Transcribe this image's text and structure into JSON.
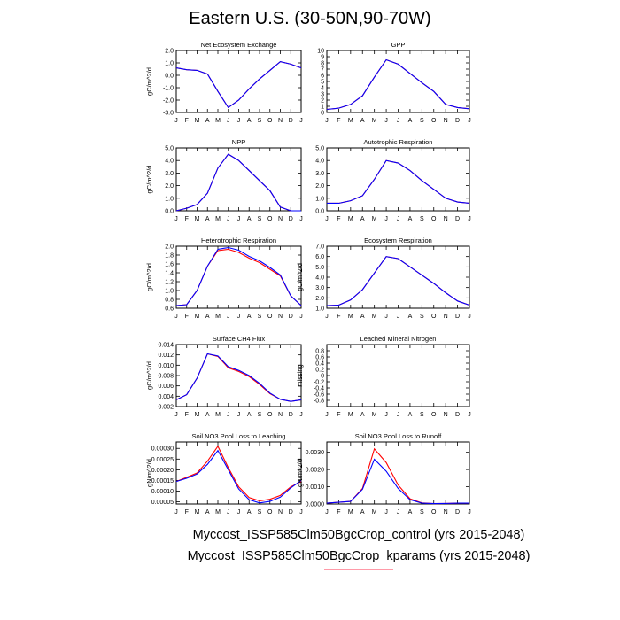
{
  "page": {
    "title": "Eastern U.S. (30-50N,90-70W)",
    "legend": [
      {
        "label": "Myccost_ISSP585Clm50BgcCrop_control (yrs 2015-2048)",
        "color": "#ff0000"
      },
      {
        "label": "Myccost_ISSP585Clm50BgcCrop_kparams (yrs 2015-2048)",
        "color": "#0000ff"
      }
    ]
  },
  "chart_data": [
    {
      "type": "line",
      "title": "Net Ecosystem Exchange",
      "ylabel": "gC/m^2/d",
      "ylim": [
        -3.0,
        2.0
      ],
      "yticks": [
        "2.0",
        "1.0",
        "0.0",
        "-1.0",
        "-2.0",
        "-3.0"
      ],
      "ytick_values": [
        2,
        1,
        0,
        -1,
        -2,
        -3
      ],
      "x": [
        "J",
        "F",
        "M",
        "A",
        "M",
        "J",
        "J",
        "A",
        "S",
        "O",
        "N",
        "D",
        "J"
      ],
      "series": [
        {
          "color": "#ff0000",
          "values": [
            0.6,
            0.45,
            0.4,
            0.1,
            -1.3,
            -2.6,
            -2.0,
            -1.1,
            -0.3,
            0.4,
            1.1,
            0.9,
            0.6
          ]
        },
        {
          "color": "#0000ff",
          "values": [
            0.6,
            0.45,
            0.4,
            0.1,
            -1.3,
            -2.6,
            -2.0,
            -1.1,
            -0.3,
            0.4,
            1.1,
            0.9,
            0.6
          ]
        }
      ]
    },
    {
      "type": "line",
      "title": "GPP",
      "ylabel": "",
      "ylim": [
        0,
        10
      ],
      "yticks": [
        "10",
        "9",
        "8",
        "7",
        "6",
        "5",
        "4",
        "3",
        "2",
        "1",
        "0"
      ],
      "ytick_values": [
        10,
        9,
        8,
        7,
        6,
        5,
        4,
        3,
        2,
        1,
        0
      ],
      "x": [
        "J",
        "F",
        "M",
        "A",
        "M",
        "J",
        "J",
        "A",
        "S",
        "O",
        "N",
        "D",
        "J"
      ],
      "series": [
        {
          "color": "#ff0000",
          "values": [
            0.5,
            0.7,
            1.3,
            2.7,
            5.7,
            8.5,
            7.8,
            6.3,
            4.8,
            3.4,
            1.3,
            0.8,
            0.6
          ]
        },
        {
          "color": "#0000ff",
          "values": [
            0.5,
            0.7,
            1.3,
            2.7,
            5.7,
            8.5,
            7.8,
            6.3,
            4.8,
            3.4,
            1.3,
            0.8,
            0.6
          ]
        }
      ]
    },
    {
      "type": "line",
      "title": "NPP",
      "ylabel": "gC/m^2/d",
      "ylim": [
        0,
        5
      ],
      "yticks": [
        "5.0",
        "4.0",
        "3.0",
        "2.0",
        "1.0",
        "0.0"
      ],
      "ytick_values": [
        5,
        4,
        3,
        2,
        1,
        0
      ],
      "x": [
        "J",
        "F",
        "M",
        "A",
        "M",
        "J",
        "J",
        "A",
        "S",
        "O",
        "N",
        "D",
        "J"
      ],
      "series": [
        {
          "color": "#ff0000",
          "values": [
            0.0,
            0.2,
            0.5,
            1.4,
            3.4,
            4.5,
            4.0,
            3.2,
            2.4,
            1.6,
            0.3,
            0.0,
            0.0
          ]
        },
        {
          "color": "#0000ff",
          "values": [
            0.0,
            0.2,
            0.5,
            1.4,
            3.4,
            4.5,
            4.0,
            3.2,
            2.4,
            1.6,
            0.3,
            0.0,
            0.0
          ]
        }
      ]
    },
    {
      "type": "line",
      "title": "Autotrophic Respiration",
      "ylabel": "",
      "ylim": [
        0,
        5
      ],
      "yticks": [
        "5.0",
        "4.0",
        "3.0",
        "2.0",
        "1.0",
        "0.0"
      ],
      "ytick_values": [
        5,
        4,
        3,
        2,
        1,
        0
      ],
      "x": [
        "J",
        "F",
        "M",
        "A",
        "M",
        "J",
        "J",
        "A",
        "S",
        "O",
        "N",
        "D",
        "J"
      ],
      "series": [
        {
          "color": "#ff0000",
          "values": [
            0.6,
            0.6,
            0.8,
            1.2,
            2.5,
            4.0,
            3.8,
            3.2,
            2.4,
            1.7,
            1.0,
            0.7,
            0.6
          ]
        },
        {
          "color": "#0000ff",
          "values": [
            0.6,
            0.6,
            0.8,
            1.2,
            2.5,
            4.0,
            3.8,
            3.2,
            2.4,
            1.7,
            1.0,
            0.7,
            0.6
          ]
        }
      ]
    },
    {
      "type": "line",
      "title": "Heterotrophic Respiration",
      "ylabel": "gC/m^2/d",
      "ylim": [
        0.6,
        2.0
      ],
      "yticks": [
        "2.0",
        "1.8",
        "1.6",
        "1.4",
        "1.2",
        "1.0",
        "0.8",
        "0.6"
      ],
      "ytick_values": [
        2.0,
        1.8,
        1.6,
        1.4,
        1.2,
        1.0,
        0.8,
        0.6
      ],
      "x": [
        "J",
        "F",
        "M",
        "A",
        "M",
        "J",
        "J",
        "A",
        "S",
        "O",
        "N",
        "D",
        "J"
      ],
      "series": [
        {
          "color": "#ff0000",
          "values": [
            0.66,
            0.68,
            1.0,
            1.55,
            1.9,
            1.93,
            1.86,
            1.73,
            1.63,
            1.48,
            1.33,
            0.88,
            0.66
          ]
        },
        {
          "color": "#0000ff",
          "values": [
            0.66,
            0.68,
            1.0,
            1.55,
            1.93,
            1.97,
            1.91,
            1.77,
            1.67,
            1.52,
            1.35,
            0.88,
            0.66
          ]
        }
      ]
    },
    {
      "type": "line",
      "title": "Ecosystem Respiration",
      "ylabel": "gC/m^2/d",
      "ylim": [
        1.0,
        7.0
      ],
      "yticks": [
        "7.0",
        "6.0",
        "5.0",
        "4.0",
        "3.0",
        "2.0",
        "1.0"
      ],
      "ytick_values": [
        7,
        6,
        5,
        4,
        3,
        2,
        1
      ],
      "x": [
        "J",
        "F",
        "M",
        "A",
        "M",
        "J",
        "J",
        "A",
        "S",
        "O",
        "N",
        "D",
        "J"
      ],
      "series": [
        {
          "color": "#ff0000",
          "values": [
            1.25,
            1.3,
            1.8,
            2.8,
            4.4,
            6.0,
            5.8,
            5.0,
            4.2,
            3.4,
            2.5,
            1.7,
            1.3
          ]
        },
        {
          "color": "#0000ff",
          "values": [
            1.25,
            1.3,
            1.8,
            2.8,
            4.4,
            6.0,
            5.8,
            5.0,
            4.2,
            3.4,
            2.5,
            1.7,
            1.3
          ]
        }
      ]
    },
    {
      "type": "line",
      "title": "Surface CH4 Flux",
      "ylabel": "gC/m^2/d",
      "ylim": [
        0.002,
        0.014
      ],
      "yticks": [
        "0.014",
        "0.012",
        "0.010",
        "0.008",
        "0.006",
        "0.004",
        "0.002"
      ],
      "ytick_values": [
        0.014,
        0.012,
        0.01,
        0.008,
        0.006,
        0.004,
        0.002
      ],
      "x": [
        "J",
        "F",
        "M",
        "A",
        "M",
        "J",
        "J",
        "A",
        "S",
        "O",
        "N",
        "D",
        "J"
      ],
      "series": [
        {
          "color": "#ff0000",
          "values": [
            0.0033,
            0.0043,
            0.0075,
            0.0122,
            0.0117,
            0.0095,
            0.0088,
            0.0078,
            0.0063,
            0.0045,
            0.0034,
            0.003,
            0.0033
          ]
        },
        {
          "color": "#0000ff",
          "values": [
            0.0033,
            0.0043,
            0.0075,
            0.0122,
            0.0118,
            0.0097,
            0.009,
            0.008,
            0.0065,
            0.0046,
            0.0034,
            0.003,
            0.0033
          ]
        }
      ]
    },
    {
      "type": "line",
      "title": "Leached Mineral Nitrogen",
      "ylabel": "missing",
      "ylim": [
        -1.0,
        1.0
      ],
      "yticks": [
        "0.8",
        "0.6",
        "0.4",
        "0.2",
        "0",
        "-0.2",
        "-0.4",
        "-0.6",
        "-0.8"
      ],
      "ytick_values": [
        0.8,
        0.6,
        0.4,
        0.2,
        0,
        -0.2,
        -0.4,
        -0.6,
        -0.8
      ],
      "x": [
        "J",
        "F",
        "M",
        "A",
        "M",
        "J",
        "J",
        "A",
        "S",
        "O",
        "N",
        "D",
        "J"
      ],
      "series": []
    },
    {
      "type": "line",
      "title": "Soil NO3 Pool Loss to Leaching",
      "ylabel": "gN/m^2/d",
      "ylim": [
        4e-05,
        0.00033
      ],
      "yticks": [
        "0.00030",
        "0.00025",
        "0.00020",
        "0.00015",
        "0.00010",
        "0.00005"
      ],
      "ytick_values": [
        0.0003,
        0.00025,
        0.0002,
        0.00015,
        0.0001,
        5e-05
      ],
      "x": [
        "J",
        "F",
        "M",
        "A",
        "M",
        "J",
        "J",
        "A",
        "S",
        "O",
        "N",
        "D",
        "J"
      ],
      "series": [
        {
          "color": "#ff0000",
          "values": [
            0.000145,
            0.000165,
            0.000185,
            0.00024,
            0.00031,
            0.00021,
            0.00012,
            7e-05,
            5.5e-05,
            6.2e-05,
            8e-05,
            0.00012,
            0.000145
          ]
        },
        {
          "color": "#0000ff",
          "values": [
            0.000145,
            0.00016,
            0.00018,
            0.000225,
            0.00029,
            0.0002,
            0.00011,
            6e-05,
            4.5e-05,
            5.2e-05,
            7.2e-05,
            0.000115,
            0.00015
          ]
        }
      ]
    },
    {
      "type": "line",
      "title": "Soil NO3 Pool Loss to Runoff",
      "ylabel": "gN/m^2/d",
      "ylim": [
        0.0,
        0.0036
      ],
      "yticks": [
        "0.0030",
        "0.0020",
        "0.0010",
        "0.0000"
      ],
      "ytick_values": [
        0.003,
        0.002,
        0.001,
        0.0
      ],
      "x": [
        "J",
        "F",
        "M",
        "A",
        "M",
        "J",
        "J",
        "A",
        "S",
        "O",
        "N",
        "D",
        "J"
      ],
      "series": [
        {
          "color": "#ff0000",
          "values": [
            5e-05,
            0.0001,
            0.00015,
            0.0009,
            0.0032,
            0.0024,
            0.0011,
            0.0003,
            6e-05,
            2e-05,
            3e-05,
            5e-05,
            5e-05
          ]
        },
        {
          "color": "#0000ff",
          "values": [
            5e-05,
            0.0001,
            0.00015,
            0.00085,
            0.0026,
            0.0019,
            0.0009,
            0.00025,
            5e-05,
            2e-05,
            3e-05,
            5e-05,
            5e-05
          ]
        }
      ]
    }
  ]
}
